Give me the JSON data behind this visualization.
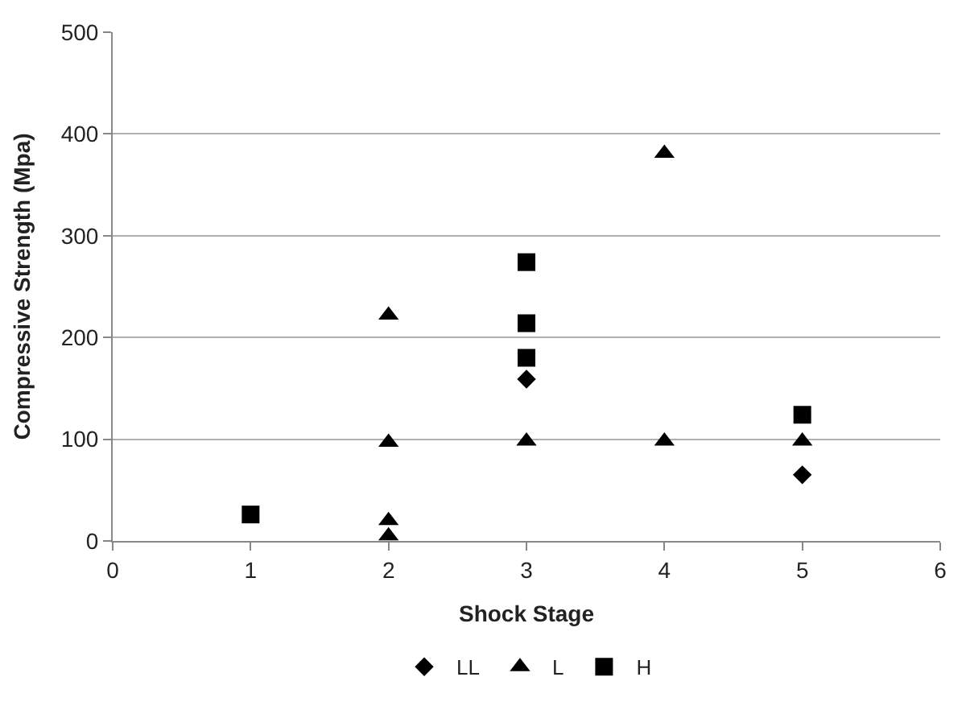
{
  "chart_data": {
    "type": "scatter",
    "xlabel": "Shock Stage",
    "ylabel": "Compressive Strength (Mpa)",
    "xlim": [
      0,
      6
    ],
    "xticks": [
      0,
      1,
      2,
      3,
      4,
      5,
      6
    ],
    "ylim": [
      0,
      500
    ],
    "yticks": [
      0,
      100,
      200,
      300,
      400,
      500
    ],
    "grid": "y",
    "legend": "bottom",
    "series": [
      {
        "name": "LL",
        "color": "#000000",
        "marker": "diamond",
        "x": [
          3,
          5
        ],
        "values": [
          159,
          65
        ]
      },
      {
        "name": "L",
        "color": "#000000",
        "marker": "triangle",
        "x": [
          2,
          2,
          2,
          2,
          3,
          4,
          4,
          5
        ],
        "values": [
          222,
          97,
          20,
          5,
          98,
          381,
          98,
          98
        ]
      },
      {
        "name": "H",
        "color": "#000000",
        "marker": "square",
        "x": [
          1,
          3,
          3,
          3,
          5
        ],
        "values": [
          26,
          274,
          214,
          180,
          124
        ]
      }
    ]
  }
}
